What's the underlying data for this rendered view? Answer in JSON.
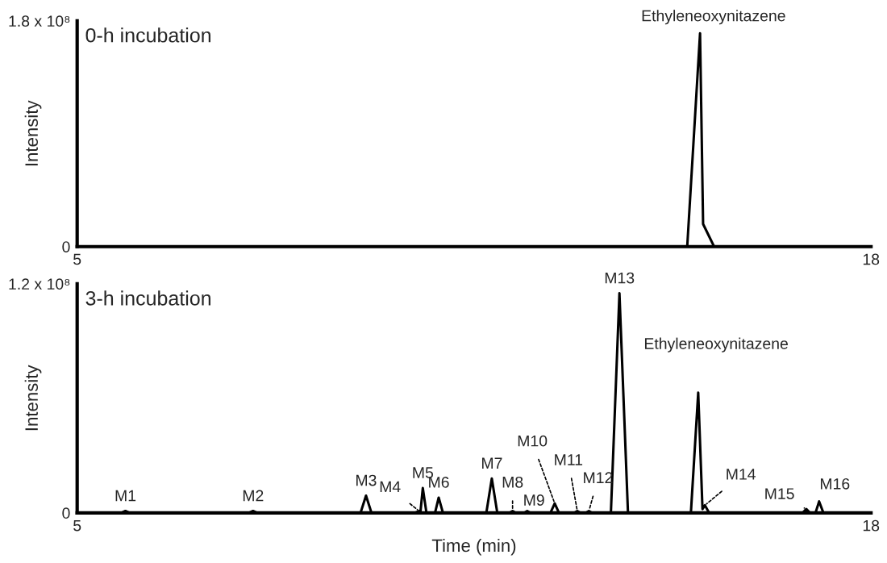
{
  "chart_data": [
    {
      "type": "line",
      "title": "0-h incubation",
      "ylabel": "Intensity",
      "grid": false,
      "marker": "none",
      "line_style": "solid",
      "xlim": [
        5,
        18
      ],
      "xticks": [
        5,
        18
      ],
      "ylim": [
        0,
        180000000.0
      ],
      "yticks": [
        0,
        {
          "value": 180000000.0,
          "label": "1.8 x 10⁸"
        }
      ],
      "series": [
        {
          "color": "#000000",
          "x": [
            5,
            14.99,
            15.2,
            15.25,
            15.43,
            18
          ],
          "values": [
            0,
            0,
            170000000.0,
            18000000.0,
            0,
            0
          ]
        }
      ],
      "annotations": [
        {
          "text": "Ethyleneoxynitazene",
          "x": 15.2,
          "y": 170000000.0
        }
      ]
    },
    {
      "type": "line",
      "title": "3-h incubation",
      "xlabel": "Time (min)",
      "ylabel": "Intensity",
      "grid": false,
      "marker": "none",
      "line_style": "solid",
      "xlim": [
        5,
        18
      ],
      "xticks": [
        5,
        18
      ],
      "ylim": [
        0,
        120000000.0
      ],
      "yticks": [
        0,
        {
          "value": 120000000.0,
          "label": "1.2 x 10⁸"
        }
      ],
      "series": [
        {
          "color": "#000000",
          "x": [
            5,
            5.72,
            5.79,
            5.86,
            7.81,
            7.88,
            7.95,
            9.64,
            9.73,
            9.82,
            10.53,
            10.6,
            10.62,
            10.66,
            10.72,
            10.86,
            10.92,
            10.99,
            11.7,
            11.79,
            11.88,
            12.08,
            12.13,
            12.18,
            12.32,
            12.37,
            12.42,
            12.75,
            12.82,
            12.89,
            13.14,
            13.19,
            13.24,
            13.33,
            13.38,
            13.43,
            13.74,
            13.88,
            14.02,
            15.05,
            15.17,
            15.24,
            15.28,
            15.35,
            16.88,
            16.94,
            17.0,
            17.09,
            17.15,
            17.22,
            18
          ],
          "values": [
            0,
            0,
            1000000.0,
            0,
            0,
            1000000.0,
            0,
            0,
            9000000.0,
            0,
            0,
            1000000.0,
            0,
            13000000.0,
            0,
            0,
            8000000.0,
            0,
            0,
            18000000.0,
            0,
            0,
            1000000.0,
            0,
            0,
            1000000.0,
            0,
            0,
            5000000.0,
            0,
            0,
            1000000.0,
            0,
            0,
            1000000.0,
            0,
            0,
            115000000.0,
            0,
            0,
            63000000.0,
            2000000.0,
            4000000.0,
            0,
            0,
            2000000.0,
            0,
            0,
            6000000.0,
            0,
            0
          ]
        }
      ],
      "annotations": [
        {
          "text": "M1",
          "x": 5.79,
          "y": 1000000.0
        },
        {
          "text": "M2",
          "x": 7.88,
          "y": 1000000.0
        },
        {
          "text": "M3",
          "x": 9.73,
          "y": 9000000.0
        },
        {
          "text": "M4",
          "x": 10.6,
          "y": 1000000.0
        },
        {
          "text": "M5",
          "x": 10.66,
          "y": 13000000.0
        },
        {
          "text": "M6",
          "x": 10.92,
          "y": 8000000.0
        },
        {
          "text": "M7",
          "x": 11.79,
          "y": 18000000.0
        },
        {
          "text": "M8",
          "x": 12.13,
          "y": 1000000.0
        },
        {
          "text": "M9",
          "x": 12.37,
          "y": 1000000.0
        },
        {
          "text": "M10",
          "x": 12.82,
          "y": 5000000.0
        },
        {
          "text": "M11",
          "x": 13.19,
          "y": 1000000.0
        },
        {
          "text": "M12",
          "x": 13.38,
          "y": 1000000.0
        },
        {
          "text": "M13",
          "x": 13.88,
          "y": 115000000.0
        },
        {
          "text": "Ethyleneoxynitazene",
          "x": 15.17,
          "y": 63000000.0
        },
        {
          "text": "M14",
          "x": 15.28,
          "y": 4000000.0
        },
        {
          "text": "M15",
          "x": 16.94,
          "y": 2000000.0
        },
        {
          "text": "M16",
          "x": 17.15,
          "y": 6000000.0
        }
      ]
    }
  ]
}
